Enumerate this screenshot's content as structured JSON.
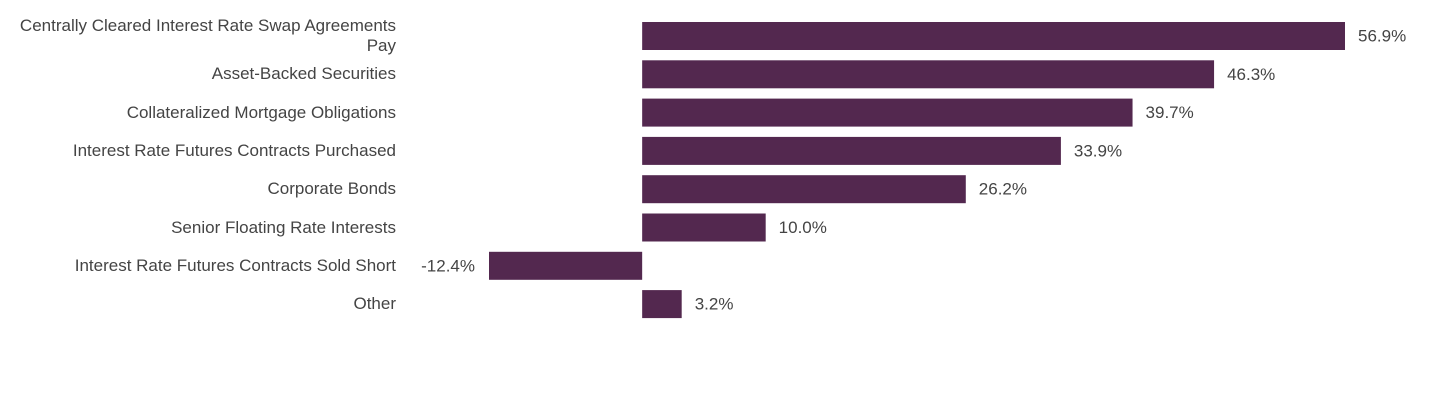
{
  "chart_data": {
    "type": "bar",
    "orientation": "horizontal",
    "categories": [
      "Centrally Cleared Interest Rate Swap Agreements Pay",
      "Asset-Backed Securities",
      "Collateralized Mortgage Obligations",
      "Interest Rate Futures Contracts Purchased",
      "Corporate Bonds",
      "Senior Floating Rate Interests",
      "Interest Rate Futures Contracts Sold Short",
      "Other"
    ],
    "values": [
      56.9,
      46.3,
      39.7,
      33.9,
      26.2,
      10.0,
      -12.4,
      3.2
    ],
    "value_labels": [
      "56.9%",
      "46.3%",
      "39.7%",
      "33.9%",
      "26.2%",
      "10.0%",
      "-12.4%",
      "3.2%"
    ],
    "color": "#53284f"
  }
}
